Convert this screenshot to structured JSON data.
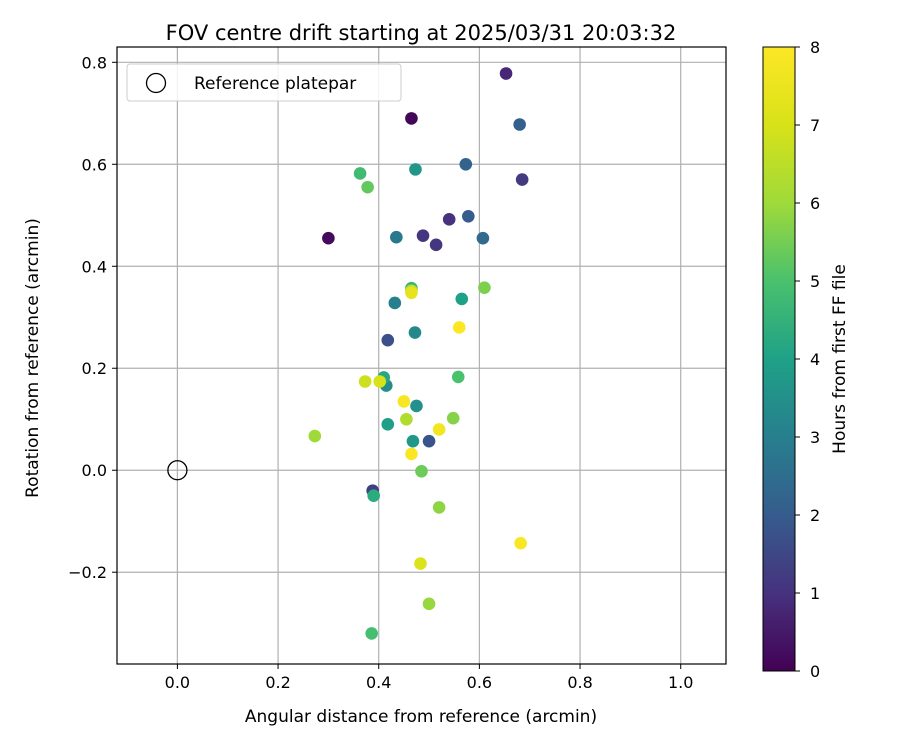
{
  "chart_data": {
    "type": "scatter",
    "title": "FOV centre drift starting at 2025/03/31 20:03:32",
    "xlabel": "Angular distance from reference (arcmin)",
    "ylabel": "Rotation from reference (arcmin)",
    "xlim": [
      -0.12,
      1.09
    ],
    "ylim": [
      -0.38,
      0.83
    ],
    "xticks": [
      0.0,
      0.2,
      0.4,
      0.6,
      0.8,
      1.0
    ],
    "xtick_labels": [
      "0.0",
      "0.2",
      "0.4",
      "0.6",
      "0.8",
      "1.0"
    ],
    "yticks": [
      -0.2,
      0.0,
      0.2,
      0.4,
      0.6,
      0.8
    ],
    "ytick_labels": [
      "−0.2",
      "0.0",
      "0.2",
      "0.4",
      "0.6",
      "0.8"
    ],
    "grid": true,
    "legend": {
      "placement": "top-left",
      "entries": [
        "Reference platepar"
      ]
    },
    "reference_point": {
      "label": "Reference platepar",
      "x": 0.0,
      "y": 0.0
    },
    "colorbar": {
      "label": "Hours from first FF file",
      "range": [
        0,
        8
      ],
      "ticks": [
        0,
        1,
        2,
        3,
        4,
        5,
        6,
        7,
        8
      ],
      "tick_labels": [
        "0",
        "1",
        "2",
        "3",
        "4",
        "5",
        "6",
        "7",
        "8"
      ],
      "colormap": "viridis"
    },
    "points": [
      {
        "x": 0.465,
        "y": 0.69,
        "hours": 0.1
      },
      {
        "x": 0.3,
        "y": 0.455,
        "hours": 0.2
      },
      {
        "x": 0.653,
        "y": 0.778,
        "hours": 0.8
      },
      {
        "x": 0.54,
        "y": 0.492,
        "hours": 1.0
      },
      {
        "x": 0.488,
        "y": 0.46,
        "hours": 1.1
      },
      {
        "x": 0.514,
        "y": 0.442,
        "hours": 1.1
      },
      {
        "x": 0.685,
        "y": 0.57,
        "hours": 1.2
      },
      {
        "x": 0.388,
        "y": -0.04,
        "hours": 1.3
      },
      {
        "x": 0.418,
        "y": 0.255,
        "hours": 1.7
      },
      {
        "x": 0.5,
        "y": 0.057,
        "hours": 1.8
      },
      {
        "x": 0.578,
        "y": 0.498,
        "hours": 2.0
      },
      {
        "x": 0.573,
        "y": 0.6,
        "hours": 2.2
      },
      {
        "x": 0.68,
        "y": 0.678,
        "hours": 2.1
      },
      {
        "x": 0.607,
        "y": 0.455,
        "hours": 2.4
      },
      {
        "x": 0.435,
        "y": 0.457,
        "hours": 2.8
      },
      {
        "x": 0.432,
        "y": 0.328,
        "hours": 3.0
      },
      {
        "x": 0.472,
        "y": 0.27,
        "hours": 3.3
      },
      {
        "x": 0.415,
        "y": 0.166,
        "hours": 3.4
      },
      {
        "x": 0.475,
        "y": 0.126,
        "hours": 3.5
      },
      {
        "x": 0.468,
        "y": 0.057,
        "hours": 3.7
      },
      {
        "x": 0.473,
        "y": 0.59,
        "hours": 3.7
      },
      {
        "x": 0.418,
        "y": 0.09,
        "hours": 3.9
      },
      {
        "x": 0.565,
        "y": 0.336,
        "hours": 4.0
      },
      {
        "x": 0.41,
        "y": 0.182,
        "hours": 4.2
      },
      {
        "x": 0.39,
        "y": -0.05,
        "hours": 4.3
      },
      {
        "x": 0.465,
        "y": 0.357,
        "hours": 4.6
      },
      {
        "x": 0.363,
        "y": 0.582,
        "hours": 4.8
      },
      {
        "x": 0.386,
        "y": -0.32,
        "hours": 4.9
      },
      {
        "x": 0.558,
        "y": 0.183,
        "hours": 5.0
      },
      {
        "x": 0.378,
        "y": 0.555,
        "hours": 5.3
      },
      {
        "x": 0.485,
        "y": -0.002,
        "hours": 5.4
      },
      {
        "x": 0.61,
        "y": 0.358,
        "hours": 5.6
      },
      {
        "x": 0.548,
        "y": 0.102,
        "hours": 5.7
      },
      {
        "x": 0.52,
        "y": -0.073,
        "hours": 5.8
      },
      {
        "x": 0.5,
        "y": -0.262,
        "hours": 5.9
      },
      {
        "x": 0.273,
        "y": 0.067,
        "hours": 6.0
      },
      {
        "x": 0.455,
        "y": 0.1,
        "hours": 6.3
      },
      {
        "x": 0.465,
        "y": 0.352,
        "hours": 6.5
      },
      {
        "x": 0.373,
        "y": 0.174,
        "hours": 6.8
      },
      {
        "x": 0.402,
        "y": 0.174,
        "hours": 7.0
      },
      {
        "x": 0.483,
        "y": -0.183,
        "hours": 7.1
      },
      {
        "x": 0.465,
        "y": 0.348,
        "hours": 7.4
      },
      {
        "x": 0.52,
        "y": 0.08,
        "hours": 7.7
      },
      {
        "x": 0.45,
        "y": 0.135,
        "hours": 7.8
      },
      {
        "x": 0.465,
        "y": 0.032,
        "hours": 7.9
      },
      {
        "x": 0.56,
        "y": 0.28,
        "hours": 8.0
      },
      {
        "x": 0.682,
        "y": -0.143,
        "hours": 7.9
      }
    ]
  }
}
